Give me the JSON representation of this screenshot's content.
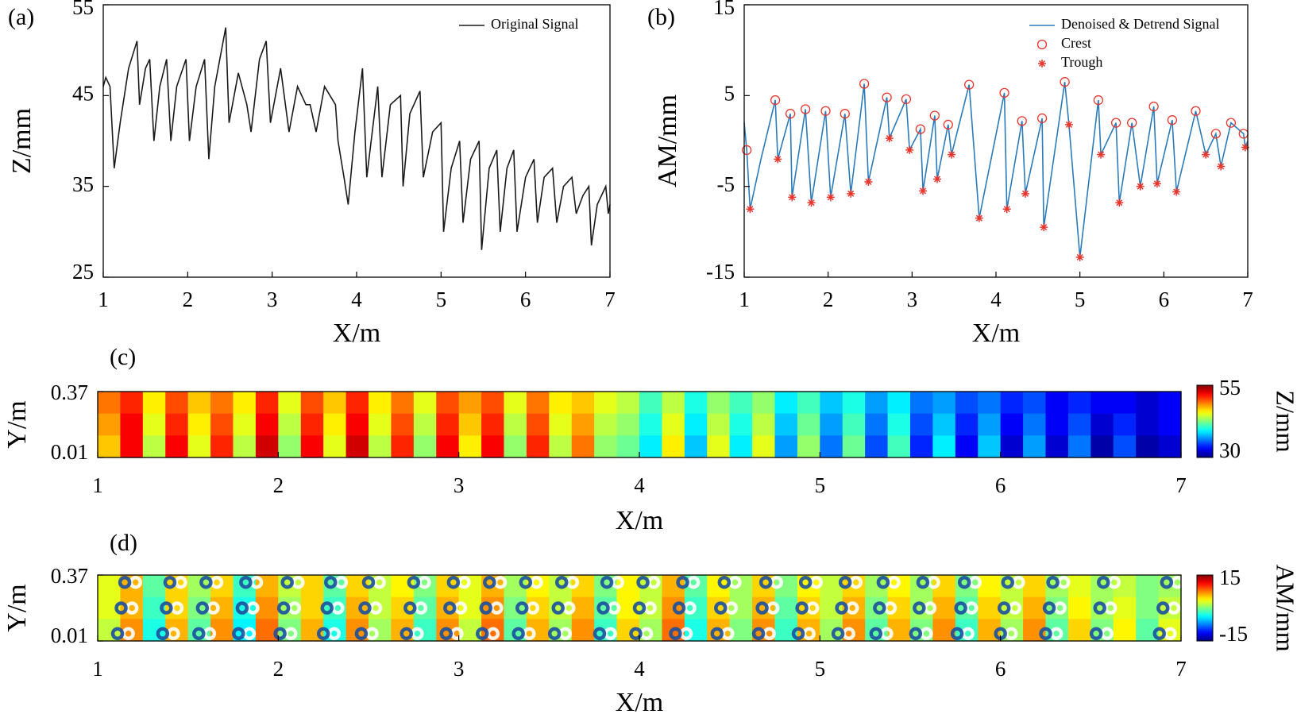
{
  "chart_data": [
    {
      "type": "line",
      "label": "(a)",
      "xlabel": "X/m",
      "ylabel": "Z/mm",
      "xlim": [
        1,
        7
      ],
      "ylim": [
        25,
        55
      ],
      "xticks": [
        1,
        2,
        3,
        4,
        5,
        6,
        7
      ],
      "yticks": [
        25,
        35,
        45,
        55
      ],
      "legend": "upper right",
      "series": [
        {
          "name": "Original Signal",
          "color": "#1a1a1a",
          "marker": "none",
          "x": [
            1.0,
            1.03,
            1.08,
            1.13,
            1.2,
            1.3,
            1.4,
            1.43,
            1.5,
            1.55,
            1.6,
            1.67,
            1.75,
            1.8,
            1.87,
            1.98,
            2.02,
            2.1,
            2.2,
            2.25,
            2.32,
            2.45,
            2.49,
            2.6,
            2.7,
            2.75,
            2.85,
            2.93,
            2.98,
            3.1,
            3.2,
            3.3,
            3.4,
            3.45,
            3.52,
            3.62,
            3.75,
            3.78,
            3.85,
            3.9,
            3.98,
            4.07,
            4.12,
            4.25,
            4.3,
            4.4,
            4.52,
            4.55,
            4.63,
            4.75,
            4.79,
            4.9,
            5.0,
            5.03,
            5.12,
            5.22,
            5.26,
            5.35,
            5.45,
            5.48,
            5.57,
            5.66,
            5.7,
            5.78,
            5.86,
            5.9,
            6.0,
            6.1,
            6.14,
            6.22,
            6.32,
            6.37,
            6.45,
            6.55,
            6.6,
            6.68,
            6.75,
            6.78,
            6.85,
            6.95,
            6.98,
            7.0
          ],
          "values": [
            46,
            47,
            46,
            37,
            42,
            48,
            51,
            44,
            48,
            49,
            40,
            46,
            49,
            40,
            46,
            49,
            40,
            46,
            49,
            38,
            46,
            52.5,
            42,
            47.5,
            44,
            41,
            49,
            51,
            42,
            48,
            41,
            46,
            44,
            44,
            41,
            46,
            44,
            40,
            36,
            33,
            41,
            48,
            36,
            46,
            36,
            44,
            45,
            35,
            43,
            45.5,
            36,
            41,
            42,
            30,
            37,
            40,
            31,
            38,
            40,
            28,
            37,
            39,
            30,
            37,
            39,
            30,
            36,
            38,
            31,
            36,
            37,
            31,
            35,
            36,
            32,
            34,
            35,
            28.5,
            33,
            35,
            32,
            33
          ]
        }
      ]
    },
    {
      "type": "line",
      "label": "(b)",
      "xlabel": "X/m",
      "ylabel": "AM/mm",
      "xlim": [
        1,
        7
      ],
      "ylim": [
        -15,
        15
      ],
      "xticks": [
        1,
        2,
        3,
        4,
        5,
        6,
        7
      ],
      "yticks": [
        -15,
        -5,
        5,
        15
      ],
      "legend": "upper right",
      "series": [
        {
          "name": "Denoised & Detrend Signal",
          "color": "#2b7bba",
          "marker": "none",
          "x": [
            1.0,
            1.03,
            1.07,
            1.2,
            1.37,
            1.4,
            1.55,
            1.57,
            1.73,
            1.8,
            1.97,
            2.03,
            2.2,
            2.27,
            2.43,
            2.48,
            2.7,
            2.73,
            2.93,
            2.97,
            3.1,
            3.13,
            3.27,
            3.3,
            3.43,
            3.47,
            3.68,
            3.8,
            4.1,
            4.13,
            4.31,
            4.35,
            4.55,
            4.57,
            4.82,
            4.87,
            5.0,
            5.22,
            5.25,
            5.43,
            5.47,
            5.62,
            5.72,
            5.88,
            5.92,
            6.1,
            6.15,
            6.38,
            6.5,
            6.62,
            6.68,
            6.8,
            6.95,
            6.97,
            7.0
          ],
          "values": [
            2,
            -1,
            -7.5,
            -2,
            4.5,
            -2,
            3,
            -6.2,
            3.5,
            -6.8,
            3.3,
            -6.2,
            3,
            -5.8,
            6.3,
            -4.5,
            4.8,
            0.3,
            4.6,
            -1,
            1.3,
            -5.5,
            2.8,
            -4.2,
            1.8,
            -1.5,
            6.2,
            -8.5,
            5.3,
            -7.5,
            2.2,
            -5.8,
            2.5,
            -9.5,
            6.5,
            1.8,
            -12.8,
            4.5,
            -1.5,
            2,
            -6.8,
            2,
            -5,
            3.8,
            -4.7,
            2.3,
            -5.6,
            3.3,
            -1.5,
            0.8,
            -2.8,
            2,
            0.8,
            -0.7,
            0
          ]
        },
        {
          "name": "Crest",
          "color": "#e8362d",
          "marker": "circle",
          "x": [
            1.03,
            1.37,
            1.55,
            1.73,
            1.97,
            2.2,
            2.43,
            2.7,
            2.93,
            3.1,
            3.27,
            3.43,
            3.68,
            4.1,
            4.31,
            4.55,
            4.82,
            5.22,
            5.43,
            5.62,
            5.88,
            6.1,
            6.38,
            6.62,
            6.8,
            6.95
          ],
          "values": [
            -1,
            4.5,
            3,
            3.5,
            3.3,
            3,
            6.3,
            4.8,
            4.6,
            1.3,
            2.8,
            1.8,
            6.2,
            5.3,
            2.2,
            2.5,
            6.5,
            4.5,
            2,
            2,
            3.8,
            2.3,
            3.3,
            0.8,
            2,
            0.8
          ]
        },
        {
          "name": "Trough",
          "color": "#e8362d",
          "marker": "asterisk",
          "x": [
            1.07,
            1.4,
            1.57,
            1.8,
            2.03,
            2.27,
            2.48,
            2.73,
            2.97,
            3.13,
            3.3,
            3.47,
            3.8,
            4.13,
            4.35,
            4.57,
            4.87,
            5.0,
            5.25,
            5.47,
            5.72,
            5.92,
            6.15,
            6.5,
            6.68,
            6.97
          ],
          "values": [
            -7.5,
            -2,
            -6.2,
            -6.8,
            -6.2,
            -5.8,
            -4.5,
            0.3,
            -1,
            -5.5,
            -4.2,
            -1.5,
            -8.5,
            -7.5,
            -5.8,
            -9.5,
            1.8,
            -12.8,
            -1.5,
            -6.8,
            -5,
            -4.7,
            -5.6,
            -1.5,
            -2.8,
            -0.7
          ]
        }
      ]
    },
    {
      "type": "heatmap",
      "label": "(c)",
      "xlabel": "X/m",
      "ylabel": "Y/m",
      "xlim": [
        1,
        7
      ],
      "ylim": [
        0.01,
        0.37
      ],
      "xticks": [
        1,
        2,
        3,
        4,
        5,
        6,
        7
      ],
      "yticks": [
        0.01,
        0.37
      ],
      "colormap": "jet",
      "clim": [
        30,
        55
      ],
      "cticks": [
        30,
        55
      ],
      "clabel": "Z/mm",
      "z": [
        [
          49,
          51,
          46,
          50,
          47,
          49,
          46,
          51,
          45,
          50,
          47,
          51,
          46,
          49,
          45,
          50,
          48,
          50,
          45,
          49,
          46,
          47,
          45,
          44,
          41,
          44,
          40,
          43,
          41,
          43,
          39,
          41,
          38,
          40,
          37,
          39,
          36,
          37,
          35,
          36,
          34,
          35,
          33,
          34,
          33,
          33,
          32,
          33
        ],
        [
          48,
          52,
          45,
          51,
          46,
          50,
          45,
          52,
          44,
          51,
          46,
          52,
          45,
          50,
          44,
          51,
          47,
          51,
          44,
          50,
          45,
          48,
          44,
          43,
          40,
          45,
          39,
          44,
          40,
          44,
          38,
          42,
          37,
          41,
          36,
          40,
          35,
          38,
          34,
          37,
          33,
          36,
          33,
          35,
          32,
          34,
          32,
          33
        ],
        [
          47,
          52,
          44,
          52,
          45,
          51,
          44,
          53,
          43,
          52,
          45,
          53,
          44,
          51,
          43,
          52,
          46,
          52,
          43,
          51,
          44,
          49,
          43,
          42,
          39,
          46,
          38,
          45,
          39,
          45,
          37,
          43,
          36,
          42,
          35,
          41,
          34,
          39,
          33,
          38,
          32,
          37,
          32,
          36,
          31,
          35,
          31,
          32
        ]
      ]
    },
    {
      "type": "heatmap",
      "label": "(d)",
      "xlabel": "X/m",
      "ylabel": "Y/m",
      "xlim": [
        1,
        7
      ],
      "ylim": [
        0.01,
        0.37
      ],
      "xticks": [
        1,
        2,
        3,
        4,
        5,
        6,
        7
      ],
      "yticks": [
        0.01,
        0.37
      ],
      "colormap": "jet",
      "clim": [
        -15,
        15
      ],
      "cticks": [
        -15,
        15
      ],
      "clabel": "AM/mm",
      "z": [
        [
          3,
          6,
          -1,
          5,
          1,
          5,
          -2,
          6,
          2,
          5,
          -1,
          5,
          2,
          4,
          0,
          5,
          3,
          6,
          1,
          4,
          2,
          5,
          0,
          4,
          2,
          6,
          -1,
          4,
          1,
          5,
          0,
          4,
          2,
          5,
          1,
          4,
          1,
          5,
          0,
          4,
          2,
          5,
          1,
          3,
          1,
          2,
          0,
          1
        ],
        [
          3,
          6,
          -2,
          5,
          0,
          6,
          -3,
          7,
          1,
          5,
          -2,
          6,
          2,
          5,
          -1,
          6,
          3,
          7,
          0,
          5,
          2,
          6,
          -1,
          4,
          2,
          7,
          -2,
          5,
          1,
          6,
          -1,
          5,
          2,
          6,
          0,
          5,
          1,
          6,
          -1,
          5,
          2,
          6,
          0,
          4,
          1,
          3,
          0,
          2
        ],
        [
          2,
          7,
          -3,
          6,
          -1,
          7,
          -4,
          8,
          0,
          6,
          -3,
          7,
          1,
          6,
          -2,
          7,
          2,
          8,
          -1,
          6,
          1,
          7,
          -2,
          5,
          1,
          8,
          -3,
          6,
          0,
          7,
          -2,
          6,
          1,
          7,
          -1,
          6,
          0,
          7,
          -2,
          6,
          1,
          7,
          -1,
          5,
          0,
          4,
          -1,
          3
        ]
      ],
      "overlay": [
        {
          "color": "#ffffff",
          "x": [
            1.17,
            1.19,
            1.21,
            1.42,
            1.44,
            1.46,
            1.62,
            1.64,
            1.66,
            1.84,
            1.86,
            1.88,
            2.07,
            2.09,
            2.11,
            2.31,
            2.33,
            2.35,
            2.52,
            2.54,
            2.56,
            2.77,
            2.79,
            2.81,
            2.99,
            3.01,
            3.03,
            3.19,
            3.21,
            3.23,
            3.39,
            3.41,
            3.43,
            3.59,
            3.61,
            3.63,
            3.84,
            3.86,
            3.88,
            4.04,
            4.06,
            4.08,
            4.26,
            4.28,
            4.3,
            4.49,
            4.51,
            4.53,
            4.72,
            4.74,
            4.76,
            4.94,
            4.96,
            4.98,
            5.16,
            5.18,
            5.2,
            5.37,
            5.39,
            5.41,
            5.59,
            5.61,
            5.63,
            5.82,
            5.84,
            5.86,
            6.06,
            6.08,
            6.1,
            6.31,
            6.33,
            6.35,
            6.59,
            6.61,
            6.63,
            6.94,
            6.96,
            6.98
          ],
          "y": [
            0.05,
            0.19,
            0.33,
            0.05,
            0.19,
            0.33,
            0.05,
            0.19,
            0.33,
            0.05,
            0.19,
            0.33,
            0.05,
            0.19,
            0.33,
            0.05,
            0.19,
            0.33,
            0.05,
            0.19,
            0.33,
            0.05,
            0.19,
            0.33,
            0.05,
            0.19,
            0.33,
            0.05,
            0.19,
            0.33,
            0.05,
            0.19,
            0.33,
            0.05,
            0.19,
            0.33,
            0.05,
            0.19,
            0.33,
            0.05,
            0.19,
            0.33,
            0.05,
            0.19,
            0.33,
            0.05,
            0.19,
            0.33,
            0.05,
            0.19,
            0.33,
            0.05,
            0.19,
            0.33,
            0.05,
            0.19,
            0.33,
            0.05,
            0.19,
            0.33,
            0.05,
            0.19,
            0.33,
            0.05,
            0.19,
            0.33,
            0.05,
            0.19,
            0.33,
            0.05,
            0.19,
            0.33,
            0.05,
            0.19,
            0.33,
            0.05,
            0.19,
            0.33
          ]
        },
        {
          "color": "#1b4f9e",
          "x": [
            1.11,
            1.13,
            1.15,
            1.36,
            1.38,
            1.4,
            1.56,
            1.58,
            1.6,
            1.78,
            1.8,
            1.82,
            2.01,
            2.03,
            2.05,
            2.25,
            2.27,
            2.29,
            2.46,
            2.48,
            2.5,
            2.71,
            2.73,
            2.75,
            2.93,
            2.95,
            2.97,
            3.13,
            3.15,
            3.17,
            3.33,
            3.35,
            3.37,
            3.53,
            3.55,
            3.57,
            3.78,
            3.8,
            3.82,
            3.98,
            4.0,
            4.02,
            4.2,
            4.22,
            4.24,
            4.43,
            4.45,
            4.47,
            4.66,
            4.68,
            4.7,
            4.88,
            4.9,
            4.92,
            5.1,
            5.12,
            5.14,
            5.31,
            5.33,
            5.35,
            5.53,
            5.55,
            5.57,
            5.76,
            5.78,
            5.8,
            6.0,
            6.02,
            6.04,
            6.25,
            6.27,
            6.29,
            6.53,
            6.55,
            6.57,
            6.88,
            6.9,
            6.92
          ],
          "y": [
            0.05,
            0.19,
            0.33,
            0.05,
            0.19,
            0.33,
            0.05,
            0.19,
            0.33,
            0.05,
            0.19,
            0.33,
            0.05,
            0.19,
            0.33,
            0.05,
            0.19,
            0.33,
            0.05,
            0.19,
            0.33,
            0.05,
            0.19,
            0.33,
            0.05,
            0.19,
            0.33,
            0.05,
            0.19,
            0.33,
            0.05,
            0.19,
            0.33,
            0.05,
            0.19,
            0.33,
            0.05,
            0.19,
            0.33,
            0.05,
            0.19,
            0.33,
            0.05,
            0.19,
            0.33,
            0.05,
            0.19,
            0.33,
            0.05,
            0.19,
            0.33,
            0.05,
            0.19,
            0.33,
            0.05,
            0.19,
            0.33,
            0.05,
            0.19,
            0.33,
            0.05,
            0.19,
            0.33,
            0.05,
            0.19,
            0.33,
            0.05,
            0.19,
            0.33,
            0.05,
            0.19,
            0.33,
            0.05,
            0.19,
            0.33,
            0.05,
            0.19,
            0.33
          ]
        }
      ]
    }
  ]
}
